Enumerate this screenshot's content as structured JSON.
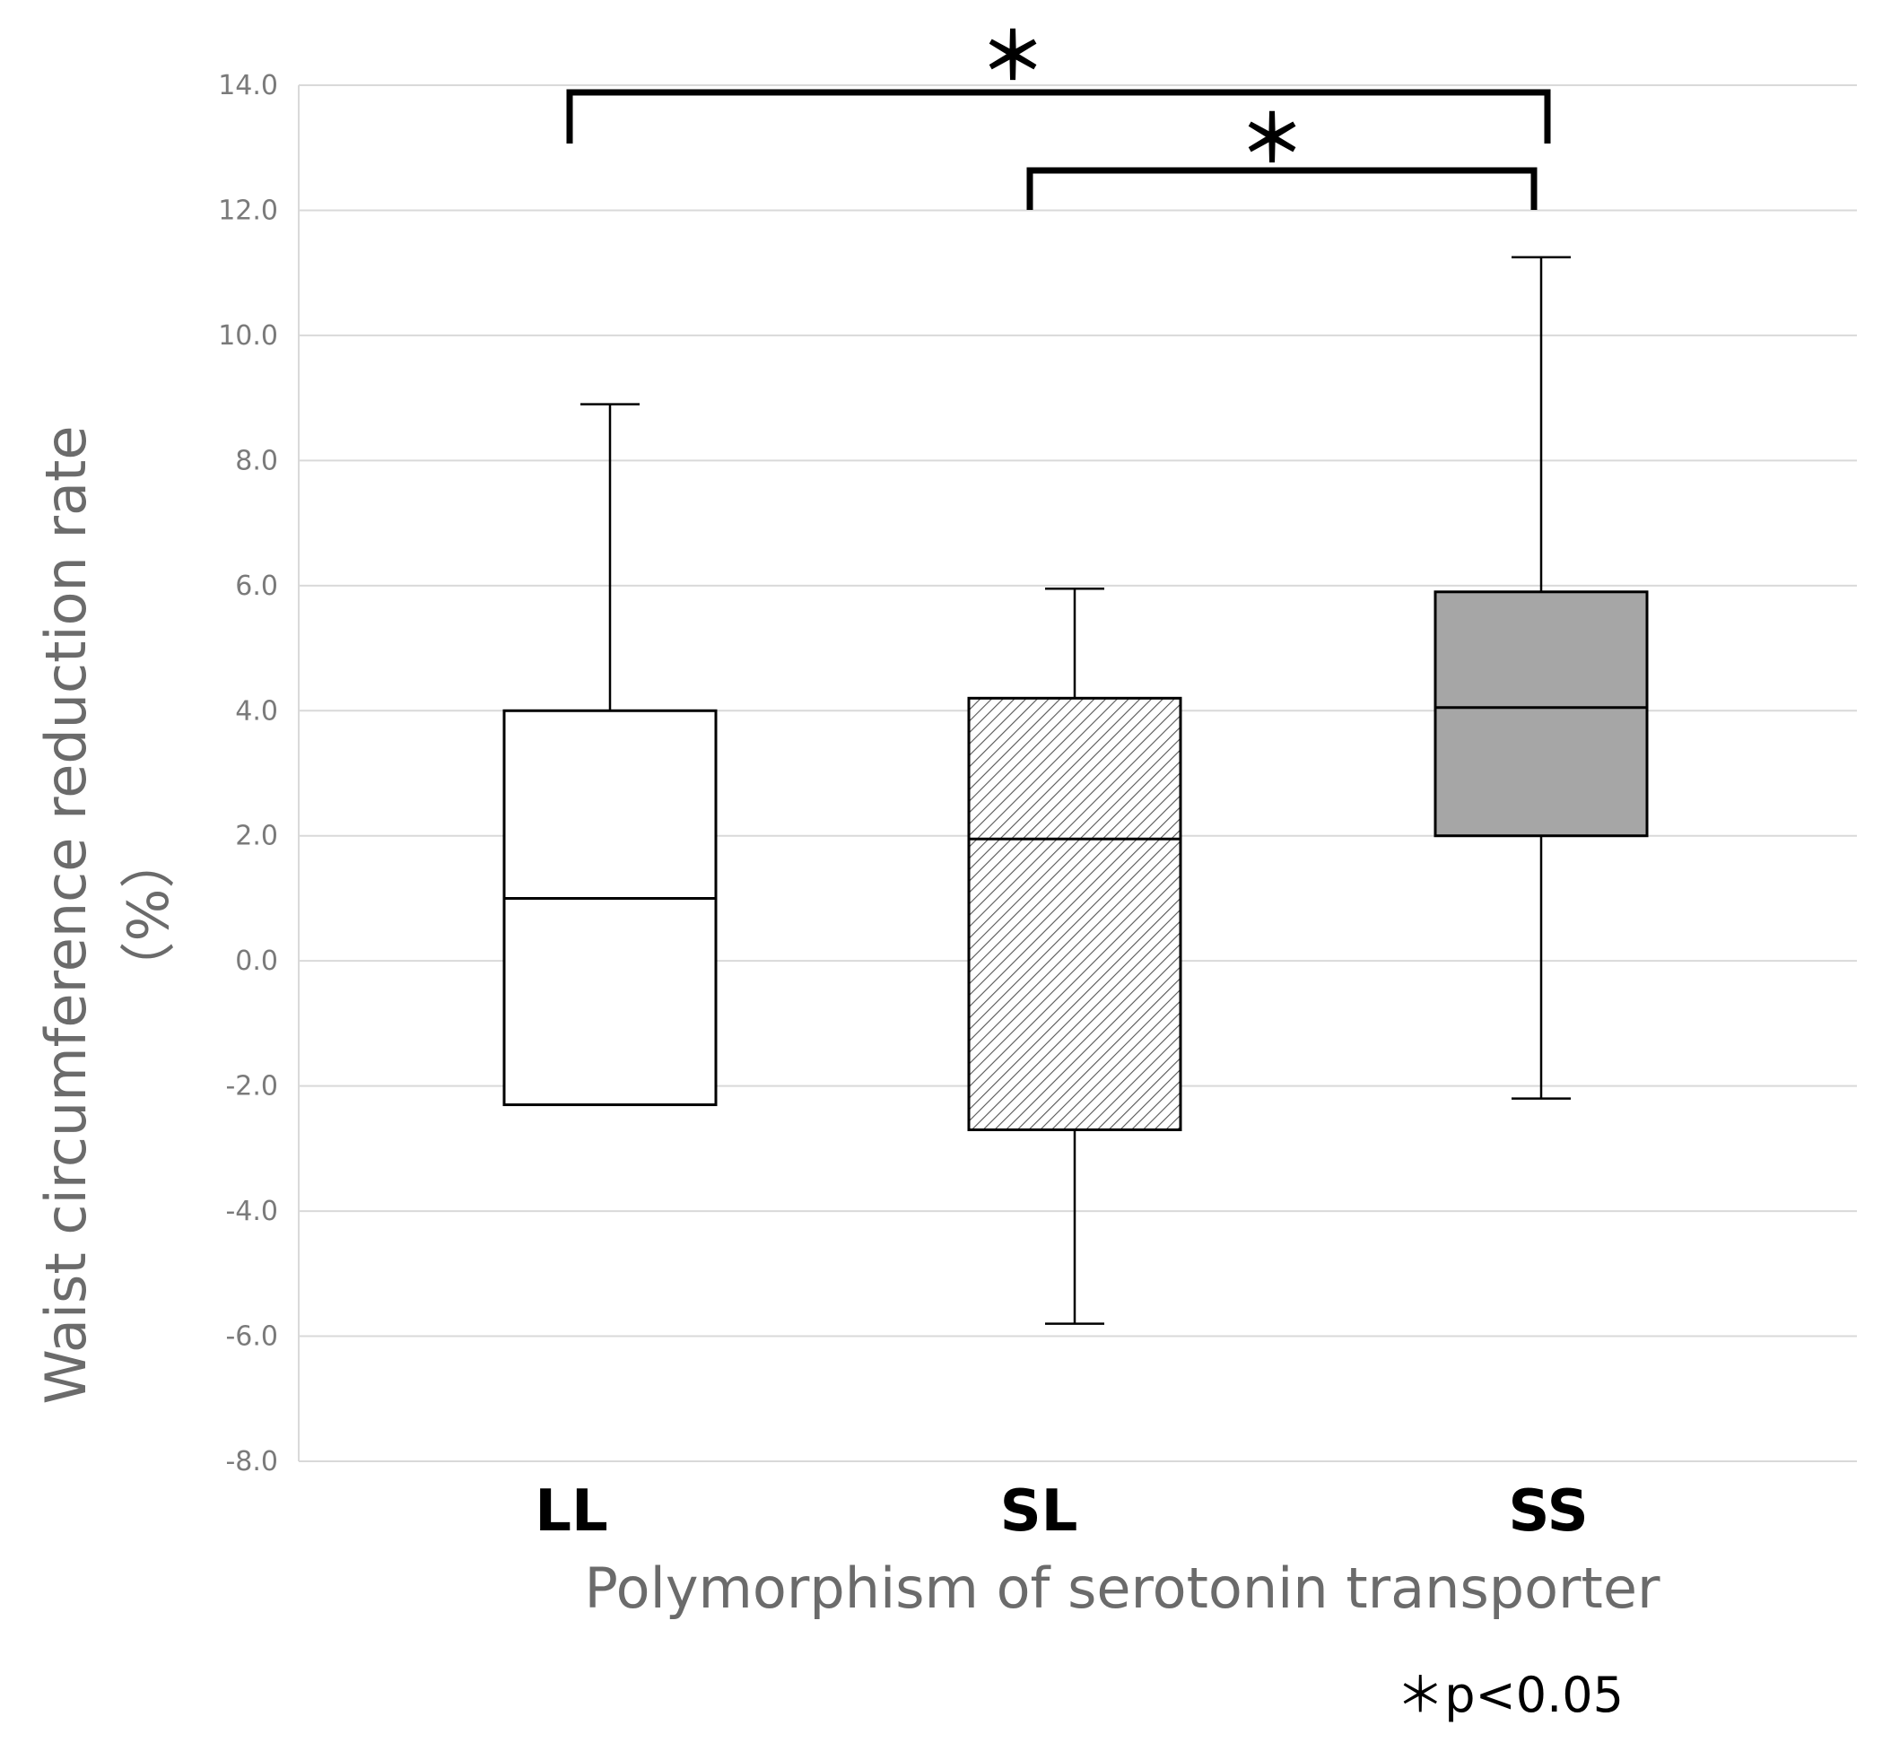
{
  "chart_data": {
    "type": "box",
    "ylabel_line1": "Waist circumference reduction rate",
    "ylabel_line2": "（%）",
    "xlabel": "Polymorphism of serotonin transporter",
    "ylim": [
      -8.0,
      14.0
    ],
    "yticks": [
      "-8.0",
      "-6.0",
      "-4.0",
      "-2.0",
      "0.0",
      "2.0",
      "4.0",
      "6.0",
      "8.0",
      "10.0",
      "12.0",
      "14.0"
    ],
    "grid": true,
    "categories": [
      "LL",
      "SL",
      "SS"
    ],
    "boxes": [
      {
        "name": "LL",
        "min": -2.3,
        "q1": -2.3,
        "median": 1.0,
        "q3": 4.0,
        "max": 8.9,
        "fill": "white"
      },
      {
        "name": "SL",
        "min": -5.8,
        "q1": -2.7,
        "median": 1.95,
        "q3": 4.2,
        "max": 5.95,
        "fill": "hatched"
      },
      {
        "name": "SS",
        "min": -2.2,
        "q1": 2.0,
        "median": 4.05,
        "q3": 5.9,
        "max": 11.25,
        "fill": "gray"
      }
    ],
    "significance": [
      {
        "from": "LL",
        "to": "SS",
        "label": "＊"
      },
      {
        "from": "SL",
        "to": "SS",
        "label": "＊"
      }
    ],
    "note": "＊p<0.05"
  },
  "colors": {
    "grid": "#d9d9d9",
    "box_stroke": "#000000",
    "ss_fill": "#a6a6a6",
    "hatch": "#555555",
    "text_gray": "#6b6b6b"
  }
}
